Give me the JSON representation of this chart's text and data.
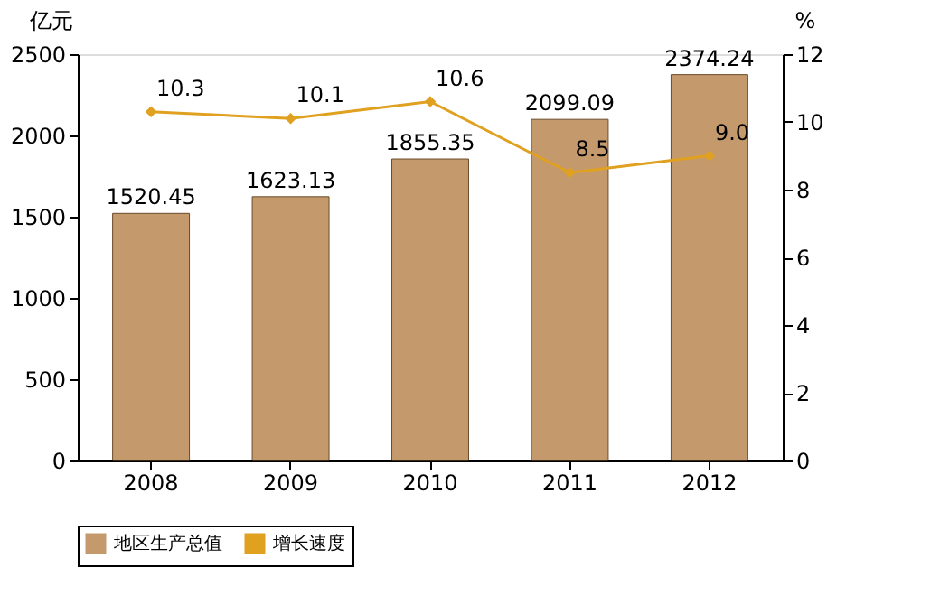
{
  "chart_data": {
    "type": "bar",
    "categories": [
      "2008",
      "2009",
      "2010",
      "2011",
      "2012"
    ],
    "ylabel": "亿元",
    "y2label": "%",
    "ylim": [
      0,
      2500
    ],
    "yticks": [
      0,
      500,
      1000,
      1500,
      2000,
      2500
    ],
    "y2lim": [
      0,
      12
    ],
    "y2ticks": [
      0,
      2,
      4,
      6,
      8,
      10,
      12
    ],
    "grid": false,
    "legend": "bottom",
    "marker": "diamond",
    "line_style": "solid",
    "series": [
      {
        "name": "地区生产总值",
        "color": "#c49a6c",
        "values": [
          1520.45,
          1623.13,
          1855.35,
          2099.09,
          2374.24
        ],
        "value_labels": [
          "1520.45",
          "1623.13",
          "1855.35",
          "2099.09",
          "2374.24"
        ]
      },
      {
        "name": "增长速度",
        "type": "line",
        "axis": "y2",
        "color": "#e0a020",
        "values": [
          10.3,
          10.1,
          10.6,
          8.5,
          9.0
        ],
        "value_labels": [
          "10.3",
          "10.1",
          "10.6",
          "8.5",
          "9.0"
        ]
      }
    ]
  }
}
